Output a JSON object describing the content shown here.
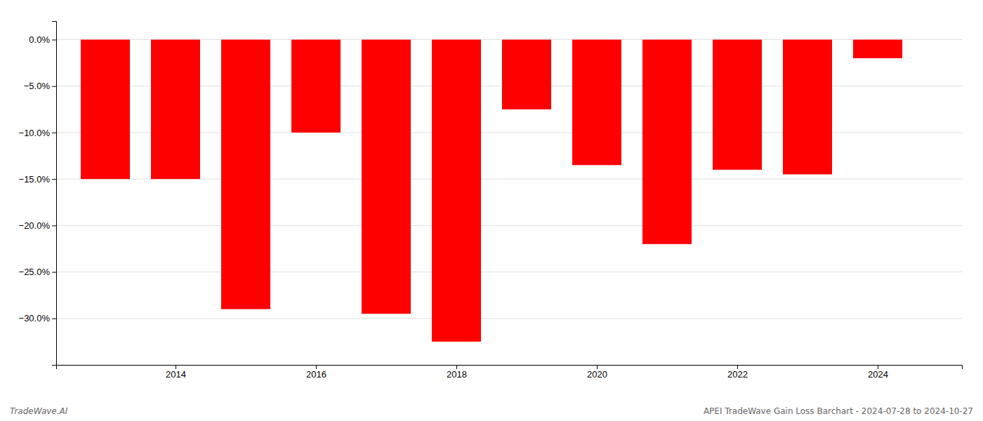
{
  "chart_data": {
    "type": "bar",
    "x": [
      2013,
      2014,
      2015,
      2016,
      2017,
      2018,
      2019,
      2020,
      2021,
      2022,
      2023,
      2024
    ],
    "values": [
      -15.0,
      -15.0,
      -29.0,
      -10.0,
      -29.5,
      -32.5,
      -7.5,
      -13.5,
      -22.0,
      -14.0,
      -14.5,
      -2.0
    ],
    "color": "#ff0000",
    "xlim": [
      2012.3,
      2025.2
    ],
    "xticks": [
      2014,
      2016,
      2018,
      2020,
      2022,
      2024
    ],
    "ylim": [
      -35,
      2.0
    ],
    "yticks": [
      {
        "value": 0.0,
        "label": "0.0%"
      },
      {
        "value": -5.0,
        "label": "−5.0%"
      },
      {
        "value": -10.0,
        "label": "−10.0%"
      },
      {
        "value": -15.0,
        "label": "−15.0%"
      },
      {
        "value": -20.0,
        "label": "−20.0%"
      },
      {
        "value": -25.0,
        "label": "−25.0%"
      },
      {
        "value": -30.0,
        "label": "−30.0%"
      }
    ],
    "grid": true,
    "annotations": [
      "TradeWave.AI",
      "APEI TradeWave Gain Loss Barchart - 2024-07-28 to 2024-10-27"
    ]
  }
}
